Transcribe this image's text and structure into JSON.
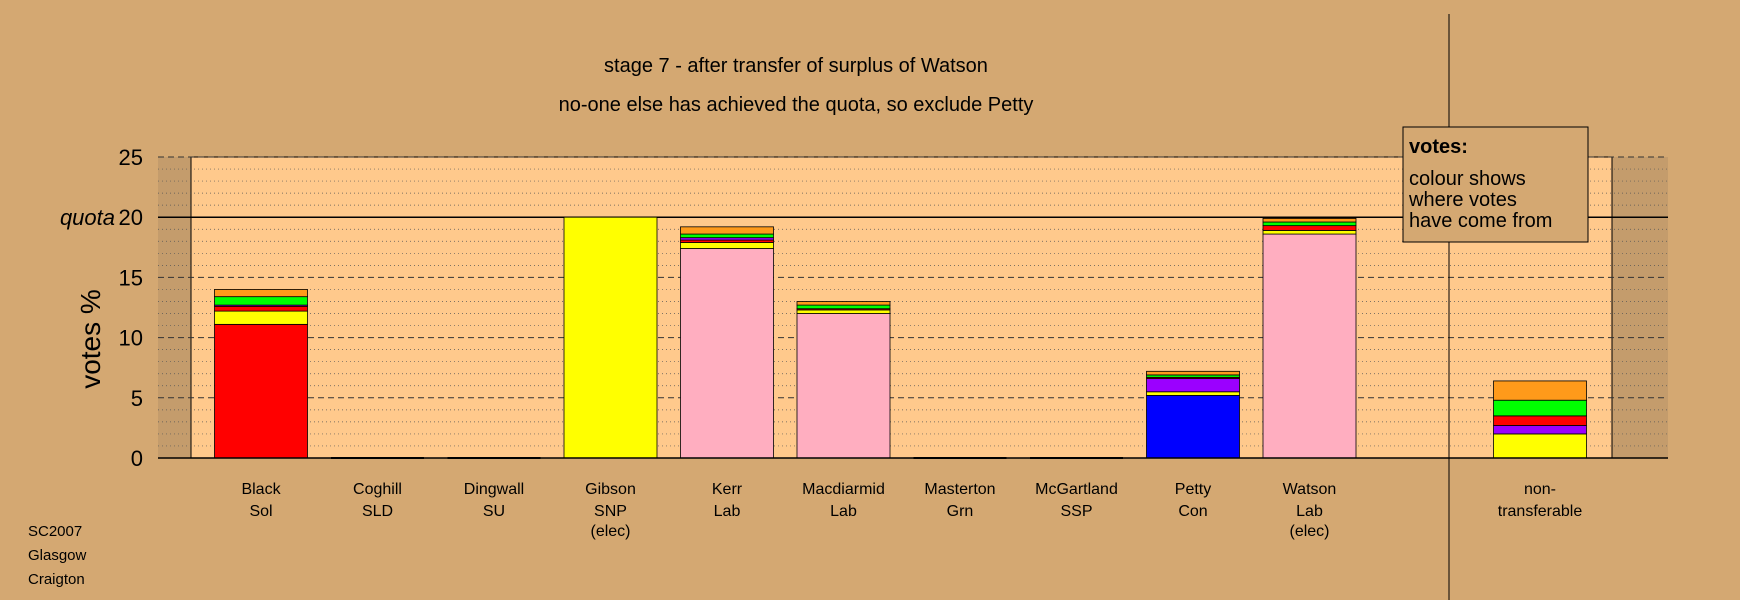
{
  "chart_data": {
    "type": "bar",
    "stacked": true,
    "title": "stage 7 - after transfer of surplus of Watson",
    "subtitle": "no-one else has achieved the quota, so exclude Petty",
    "ylabel": "votes %",
    "ylim": [
      0,
      25
    ],
    "yticks": [
      0,
      5,
      10,
      15,
      20,
      25
    ],
    "quota": {
      "label": "quota",
      "value": 20
    },
    "legend": {
      "title": "votes:",
      "lines": [
        "colour shows",
        "where votes",
        "have come from"
      ]
    },
    "source": [
      "SC2007",
      "Glasgow",
      "Craigton"
    ],
    "candidates": [
      {
        "name": "Black",
        "party": "Sol",
        "note": "",
        "segments": [
          {
            "color": "#FF0000",
            "value": 11.1
          },
          {
            "color": "#FFFF00",
            "value": 1.1
          },
          {
            "color": "#FF0000",
            "value": 0.4
          },
          {
            "color": "#9B00FF",
            "value": 0.1
          },
          {
            "color": "#00FF00",
            "value": 0.7
          },
          {
            "color": "#FF9A1A",
            "value": 0.6
          }
        ]
      },
      {
        "name": "Coghill",
        "party": "SLD",
        "note": "",
        "segments": []
      },
      {
        "name": "Dingwall",
        "party": "SU",
        "note": "",
        "segments": []
      },
      {
        "name": "Gibson",
        "party": "SNP",
        "note": "(elec)",
        "segments": [
          {
            "color": "#FFFF00",
            "value": 20.0
          }
        ]
      },
      {
        "name": "Kerr",
        "party": "Lab",
        "note": "",
        "segments": [
          {
            "color": "#FFAEC0",
            "value": 17.4
          },
          {
            "color": "#FFFF00",
            "value": 0.5
          },
          {
            "color": "#FF0000",
            "value": 0.2
          },
          {
            "color": "#9B00FF",
            "value": 0.2
          },
          {
            "color": "#00FF00",
            "value": 0.3
          },
          {
            "color": "#FF9A1A",
            "value": 0.6
          }
        ]
      },
      {
        "name": "Macdiarmid",
        "party": "Lab",
        "note": "",
        "segments": [
          {
            "color": "#FFAEC0",
            "value": 12.0
          },
          {
            "color": "#FFFF00",
            "value": 0.3
          },
          {
            "color": "#FF0000",
            "value": 0.1
          },
          {
            "color": "#00FF00",
            "value": 0.3
          },
          {
            "color": "#FF9A1A",
            "value": 0.3
          }
        ]
      },
      {
        "name": "Masterton",
        "party": "Grn",
        "note": "",
        "segments": []
      },
      {
        "name": "McGartland",
        "party": "SSP",
        "note": "",
        "segments": []
      },
      {
        "name": "Petty",
        "party": "Con",
        "note": "",
        "segments": [
          {
            "color": "#0000FF",
            "value": 5.2
          },
          {
            "color": "#FFFF00",
            "value": 0.3
          },
          {
            "color": "#9B00FF",
            "value": 1.1
          },
          {
            "color": "#FF0000",
            "value": 0.1
          },
          {
            "color": "#00FF00",
            "value": 0.2
          },
          {
            "color": "#FF9A1A",
            "value": 0.3
          }
        ]
      },
      {
        "name": "Watson",
        "party": "Lab",
        "note": "(elec)",
        "segments": [
          {
            "color": "#FFAEC0",
            "value": 18.6
          },
          {
            "color": "#FFFF00",
            "value": 0.3
          },
          {
            "color": "#FF0000",
            "value": 0.4
          },
          {
            "color": "#00FF00",
            "value": 0.3
          },
          {
            "color": "#FF9A1A",
            "value": 0.3
          }
        ]
      }
    ],
    "nontransferable": {
      "name": "non-",
      "party": "transferable",
      "note": "",
      "segments": [
        {
          "color": "#FFFF00",
          "value": 2.0
        },
        {
          "color": "#9B00FF",
          "value": 0.7
        },
        {
          "color": "#FF0000",
          "value": 0.8
        },
        {
          "color": "#00FF00",
          "value": 1.3
        },
        {
          "color": "#FF9A1A",
          "value": 1.6
        }
      ]
    }
  }
}
